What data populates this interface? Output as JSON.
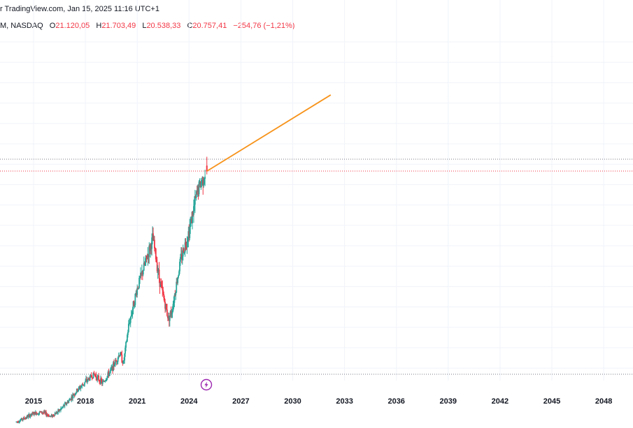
{
  "header": {
    "source": "r TradingView.com, Jan 15, 2025 11:16 UTC+1"
  },
  "ohlc": {
    "symbol": "M, NASDAQ",
    "open_label": "O",
    "open": "21.120,05",
    "high_label": "H",
    "high": "21.703,49",
    "low_label": "L",
    "low": "20.538,33",
    "close_label": "C",
    "close": "20.757,41",
    "change": "−254,76 (−1,21%)"
  },
  "colors": {
    "up": "#26a69a",
    "down": "#f23645",
    "projection": "#f7931a",
    "grid": "#f0f3fa",
    "price_line": "#f23645",
    "event_icon": "#9c27b0"
  },
  "icons": {
    "event_marker": "lightning-bolt-icon"
  },
  "chart_data": {
    "type": "candlestick",
    "x_axis": {
      "ticks": [
        "2015",
        "2018",
        "2021",
        "2024",
        "2027",
        "2030",
        "2033",
        "2036",
        "2039",
        "2042",
        "2045",
        "2048"
      ]
    },
    "grid": true,
    "series": [
      {
        "values": [
          [
            2014.0,
            4150
          ],
          [
            2014.5,
            4400
          ],
          [
            2015.0,
            4700
          ],
          [
            2015.5,
            4800
          ],
          [
            2016.0,
            4500
          ],
          [
            2016.5,
            4900
          ],
          [
            2017.0,
            5500
          ],
          [
            2017.5,
            6200
          ],
          [
            2018.0,
            6800
          ],
          [
            2018.5,
            7300
          ],
          [
            2019.0,
            6700
          ],
          [
            2019.5,
            7600
          ],
          [
            2020.0,
            8700
          ],
          [
            2020.2,
            8000
          ],
          [
            2020.5,
            10500
          ],
          [
            2021.0,
            13000
          ],
          [
            2021.5,
            14800
          ],
          [
            2021.9,
            16300
          ],
          [
            2022.3,
            13500
          ],
          [
            2022.8,
            11000
          ],
          [
            2023.0,
            11500
          ],
          [
            2023.5,
            14800
          ],
          [
            2024.0,
            16800
          ],
          [
            2024.5,
            19500
          ],
          [
            2025.0,
            20757
          ]
        ]
      }
    ],
    "last_candle": {
      "open": 21120.05,
      "high": 21703.49,
      "low": 20538.33,
      "close": 20757.41,
      "date": "Jan 15, 2025"
    },
    "projection_line": {
      "from": [
        2025.04,
        20757
      ],
      "to": [
        2032.2,
        25800
      ]
    }
  }
}
